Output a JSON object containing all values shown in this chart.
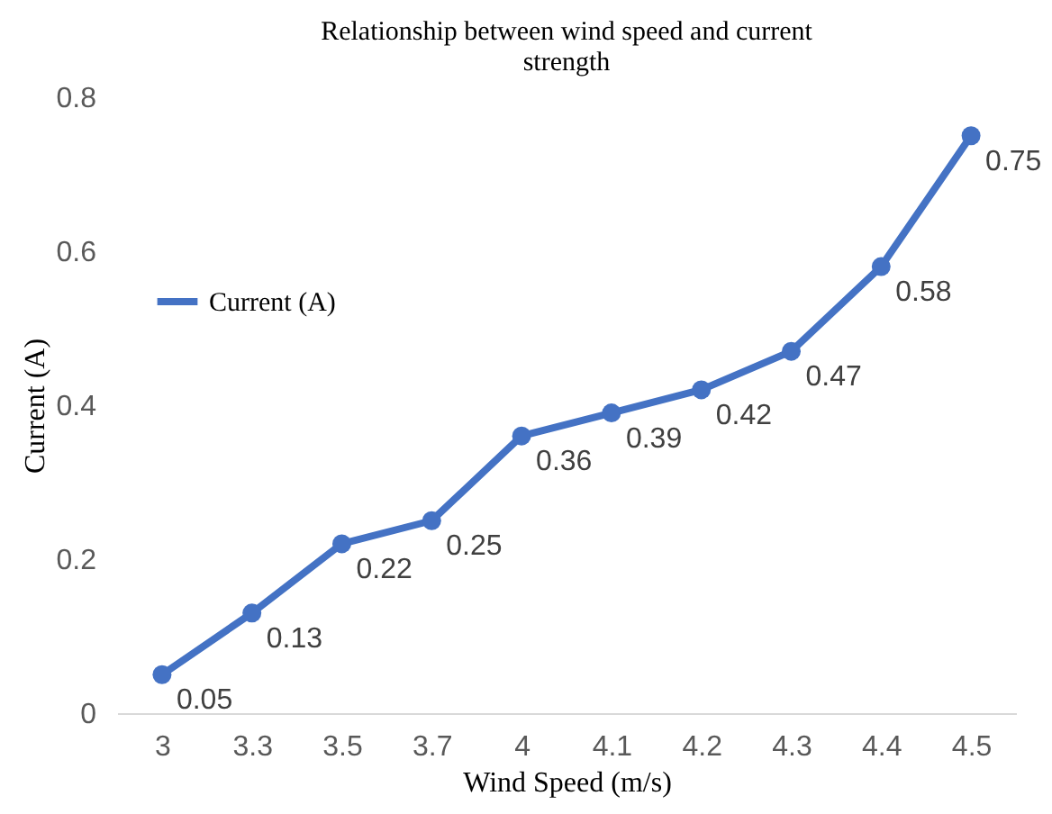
{
  "chart_data": {
    "type": "line",
    "title": "Relationship between wind speed and current strength",
    "xlabel": "Wind Speed (m/s)",
    "ylabel": "Current  (A)",
    "categories": [
      "3",
      "3.3",
      "3.5",
      "3.7",
      "4",
      "4.1",
      "4.2",
      "4.3",
      "4.4",
      "4.5"
    ],
    "series": [
      {
        "name": "Current (A)",
        "color": "#4472c4",
        "values": [
          0.05,
          0.13,
          0.22,
          0.25,
          0.36,
          0.39,
          0.42,
          0.47,
          0.58,
          0.75
        ]
      }
    ],
    "ylim": [
      0,
      0.8
    ],
    "yticks": [
      0,
      0.2,
      0.4,
      0.6,
      0.8
    ],
    "grid": false,
    "legend": "top left",
    "marker": "circle",
    "line_style": "solid",
    "data_labels": true
  }
}
